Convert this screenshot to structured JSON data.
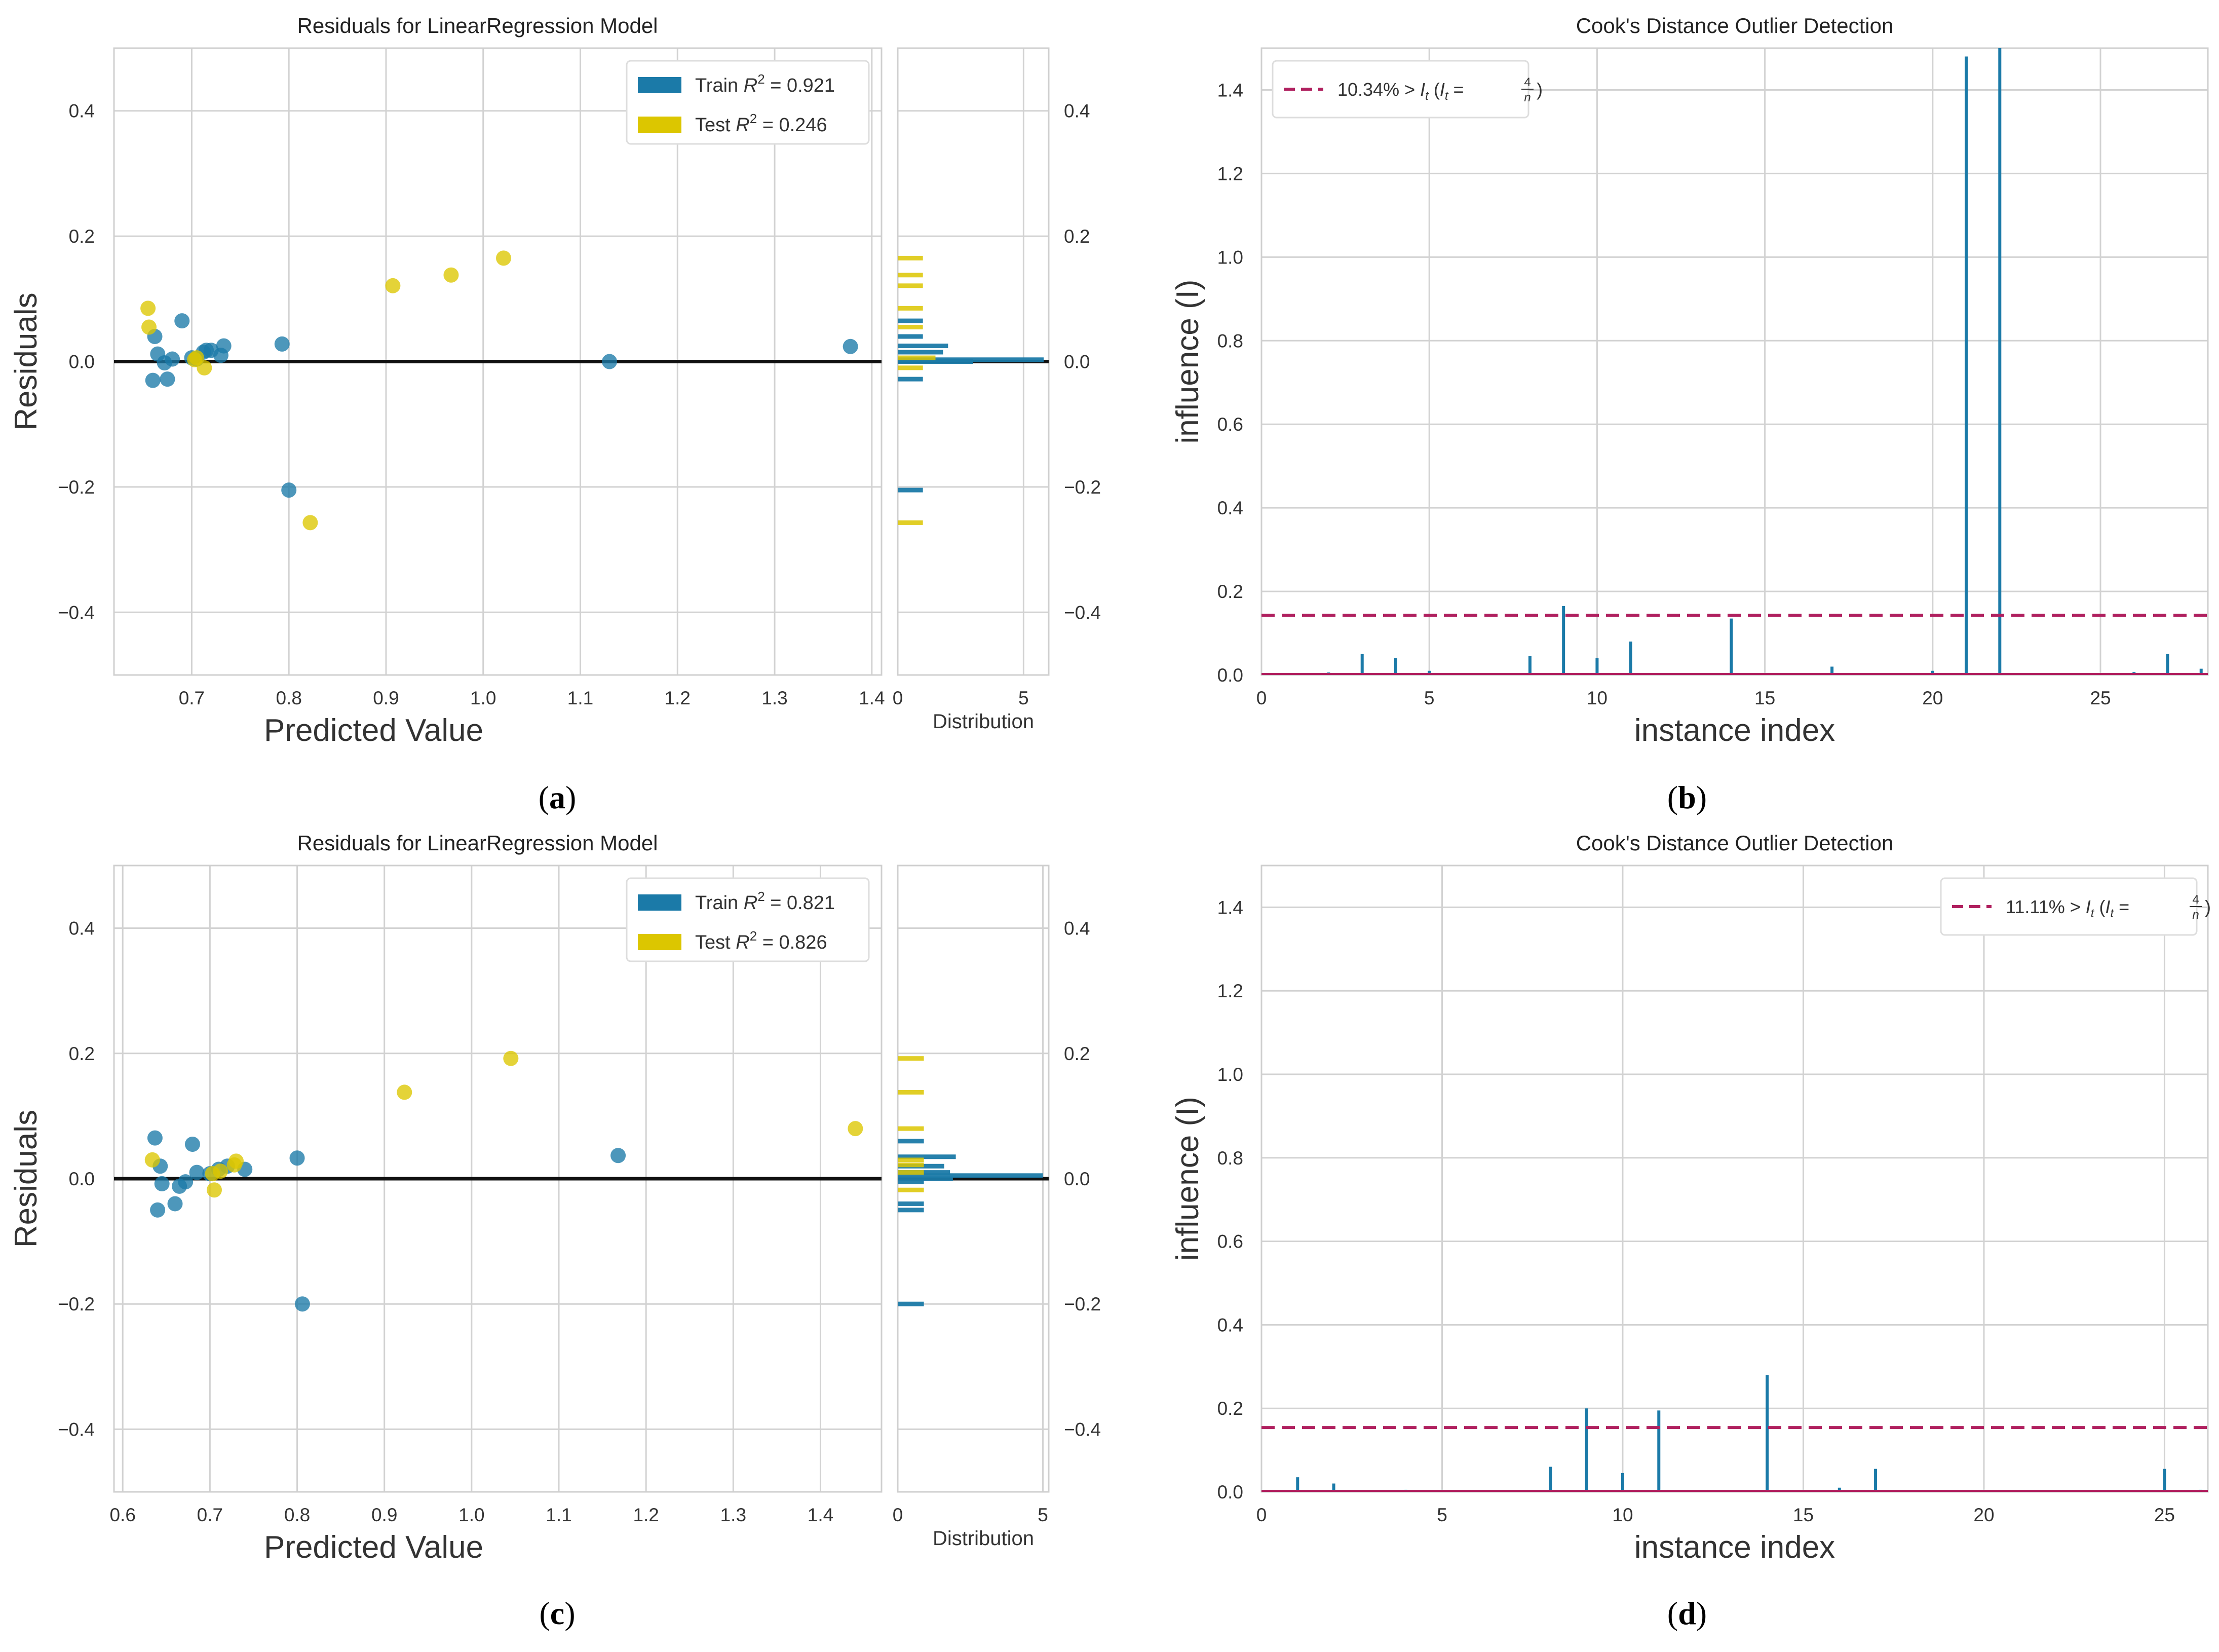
{
  "colors": {
    "train": "#1b7aa8",
    "test": "#dcc600",
    "grid": "#d2d2d2",
    "threshold": "#b0205f",
    "stem": "#1b7aa8",
    "zero_line": "#111111"
  },
  "panels": {
    "a": {
      "caption": "(a)",
      "bold": "a"
    },
    "b": {
      "caption": "(b)",
      "bold": "b"
    },
    "c": {
      "caption": "(c)",
      "bold": "c"
    },
    "d": {
      "caption": "(d)",
      "bold": "d"
    }
  },
  "chart_data": [
    {
      "id": "a",
      "type": "scatter",
      "title": "Residuals for LinearRegression Model",
      "xlabel": "Predicted Value",
      "ylabel": "Residuals",
      "xlim": [
        0.62,
        1.41
      ],
      "ylim": [
        -0.5,
        0.5
      ],
      "xticks": [
        0.7,
        0.8,
        0.9,
        1.0,
        1.1,
        1.2,
        1.3,
        1.4
      ],
      "xtick_labels": [
        "0.7",
        "0.8",
        "0.9",
        "1.0",
        "1.1",
        "1.2",
        "1.3",
        "1.4"
      ],
      "yticks": [
        -0.4,
        -0.2,
        0.0,
        0.2,
        0.4
      ],
      "ytick_labels": [
        "−0.4",
        "−0.2",
        "0.0",
        "0.2",
        "0.4"
      ],
      "legend": {
        "position": "top-right",
        "entries": [
          {
            "series": "train",
            "prefix": "Train ",
            "r2_value": "0.921"
          },
          {
            "series": "test",
            "prefix": "Test ",
            "r2_value": "0.246"
          }
        ]
      },
      "series": [
        {
          "name": "train",
          "x": [
            0.662,
            0.665,
            0.66,
            0.672,
            0.675,
            0.68,
            0.69,
            0.7,
            0.705,
            0.712,
            0.715,
            0.72,
            0.73,
            0.733,
            0.793,
            0.8,
            1.13,
            1.378
          ],
          "y": [
            0.04,
            0.012,
            -0.03,
            -0.002,
            -0.028,
            0.004,
            0.065,
            0.006,
            0.004,
            0.015,
            0.018,
            0.018,
            0.01,
            0.025,
            0.028,
            -0.205,
            0.0,
            0.024
          ]
        },
        {
          "name": "test",
          "x": [
            0.655,
            0.656,
            0.703,
            0.705,
            0.713,
            0.822,
            0.907,
            0.967,
            1.021
          ],
          "y": [
            0.085,
            0.055,
            0.003,
            0.006,
            -0.01,
            -0.257,
            0.121,
            0.138,
            0.165
          ]
        }
      ],
      "distribution": {
        "xlabel": "Distribution",
        "xlim": [
          0,
          6
        ],
        "xticks": [
          0,
          5
        ],
        "xtick_labels": [
          "0",
          "5"
        ],
        "bins": [
          {
            "series": "train",
            "y": 0.003,
            "count": 5.8
          },
          {
            "series": "train",
            "y": 0.0,
            "count": 3.0
          },
          {
            "series": "train",
            "y": 0.025,
            "count": 2.0
          },
          {
            "series": "train",
            "y": 0.015,
            "count": 1.8
          },
          {
            "series": "train",
            "y": 0.04,
            "count": 1.0
          },
          {
            "series": "train",
            "y": 0.065,
            "count": 1.0
          },
          {
            "series": "train",
            "y": -0.028,
            "count": 1.0
          },
          {
            "series": "train",
            "y": -0.205,
            "count": 1.0
          },
          {
            "series": "test",
            "y": 0.165,
            "count": 1.0
          },
          {
            "series": "test",
            "y": 0.138,
            "count": 1.0
          },
          {
            "series": "test",
            "y": 0.121,
            "count": 1.0
          },
          {
            "series": "test",
            "y": 0.085,
            "count": 1.0
          },
          {
            "series": "test",
            "y": 0.055,
            "count": 1.0
          },
          {
            "series": "test",
            "y": 0.006,
            "count": 1.5
          },
          {
            "series": "test",
            "y": -0.01,
            "count": 1.0
          },
          {
            "series": "test",
            "y": -0.257,
            "count": 1.0
          }
        ]
      }
    },
    {
      "id": "b",
      "type": "stem",
      "title": "Cook's Distance Outlier Detection",
      "xlabel": "instance index",
      "ylabel": "influence (I)",
      "xlim": [
        0,
        28.2
      ],
      "ylim": [
        0,
        1.5
      ],
      "xticks": [
        0,
        5,
        10,
        15,
        20,
        25
      ],
      "xtick_labels": [
        "0",
        "5",
        "10",
        "15",
        "20",
        "25"
      ],
      "yticks": [
        0.0,
        0.2,
        0.4,
        0.6,
        0.8,
        1.0,
        1.2,
        1.4
      ],
      "ytick_labels": [
        "0.0",
        "0.2",
        "0.4",
        "0.6",
        "0.8",
        "1.0",
        "1.2",
        "1.4"
      ],
      "threshold": 0.143,
      "legend": {
        "position": "top-left",
        "percent": "10.34%",
        "gt": " > ",
        "numerator": "4",
        "denominator": "n"
      },
      "x": [
        0,
        1,
        2,
        3,
        4,
        5,
        6,
        7,
        8,
        9,
        10,
        11,
        12,
        13,
        14,
        15,
        16,
        17,
        18,
        19,
        20,
        21,
        22,
        23,
        24,
        25,
        26,
        27,
        28
      ],
      "y": [
        0.0,
        0.003,
        0.006,
        0.05,
        0.04,
        0.01,
        0.0,
        0.002,
        0.045,
        0.165,
        0.04,
        0.08,
        0.0,
        0.0,
        0.135,
        0.0,
        0.004,
        0.02,
        0.0,
        0.004,
        0.01,
        1.48,
        1.5,
        0.0,
        0.0,
        0.0,
        0.007,
        0.05,
        0.015
      ]
    },
    {
      "id": "c",
      "type": "scatter",
      "title": "Residuals for LinearRegression Model",
      "xlabel": "Predicted Value",
      "ylabel": "Residuals",
      "xlim": [
        0.59,
        1.47
      ],
      "ylim": [
        -0.5,
        0.5
      ],
      "xticks": [
        0.6,
        0.7,
        0.8,
        0.9,
        1.0,
        1.1,
        1.2,
        1.3,
        1.4
      ],
      "xtick_labels": [
        "0.6",
        "0.7",
        "0.8",
        "0.9",
        "1.0",
        "1.1",
        "1.2",
        "1.3",
        "1.4"
      ],
      "yticks": [
        -0.4,
        -0.2,
        0.0,
        0.2,
        0.4
      ],
      "ytick_labels": [
        "−0.4",
        "−0.2",
        "0.0",
        "0.2",
        "0.4"
      ],
      "legend": {
        "position": "top-right",
        "entries": [
          {
            "series": "train",
            "prefix": "Train ",
            "r2_value": "0.821"
          },
          {
            "series": "test",
            "prefix": "Test ",
            "r2_value": "0.826"
          }
        ]
      },
      "series": [
        {
          "name": "train",
          "x": [
            0.637,
            0.64,
            0.643,
            0.645,
            0.66,
            0.665,
            0.672,
            0.68,
            0.685,
            0.7,
            0.71,
            0.72,
            0.74,
            0.8,
            0.806,
            1.168
          ],
          "y": [
            0.065,
            -0.05,
            0.02,
            -0.008,
            -0.04,
            -0.012,
            -0.005,
            0.055,
            0.01,
            0.008,
            0.015,
            0.02,
            0.015,
            0.033,
            -0.2,
            0.037
          ]
        },
        {
          "name": "test",
          "x": [
            0.634,
            0.703,
            0.705,
            0.712,
            0.728,
            0.73,
            0.923,
            1.045,
            1.44
          ],
          "y": [
            0.03,
            0.008,
            -0.018,
            0.012,
            0.022,
            0.028,
            0.138,
            0.192,
            0.08
          ]
        }
      ],
      "distribution": {
        "xlabel": "Distribution",
        "xlim": [
          0,
          5.2
        ],
        "xticks": [
          0,
          5
        ],
        "xtick_labels": [
          "0",
          "5"
        ],
        "bins": [
          {
            "series": "train",
            "y": 0.005,
            "count": 5.0
          },
          {
            "series": "train",
            "y": 0.01,
            "count": 1.8
          },
          {
            "series": "train",
            "y": 0.0,
            "count": 1.9
          },
          {
            "series": "train",
            "y": 0.02,
            "count": 1.6
          },
          {
            "series": "train",
            "y": 0.035,
            "count": 2.0
          },
          {
            "series": "train",
            "y": 0.06,
            "count": 0.9
          },
          {
            "series": "train",
            "y": -0.005,
            "count": 0.9
          },
          {
            "series": "train",
            "y": -0.04,
            "count": 0.9
          },
          {
            "series": "train",
            "y": -0.05,
            "count": 0.9
          },
          {
            "series": "train",
            "y": -0.2,
            "count": 0.9
          },
          {
            "series": "test",
            "y": 0.192,
            "count": 0.9
          },
          {
            "series": "test",
            "y": 0.138,
            "count": 0.9
          },
          {
            "series": "test",
            "y": 0.08,
            "count": 0.9
          },
          {
            "series": "test",
            "y": 0.03,
            "count": 0.9
          },
          {
            "series": "test",
            "y": 0.022,
            "count": 0.9
          },
          {
            "series": "test",
            "y": 0.01,
            "count": 0.9
          },
          {
            "series": "test",
            "y": -0.018,
            "count": 0.9
          }
        ]
      }
    },
    {
      "id": "d",
      "type": "stem",
      "title": "Cook's Distance Outlier Detection",
      "xlabel": "instance index",
      "ylabel": "influence (I)",
      "xlim": [
        0,
        26.2
      ],
      "ylim": [
        0,
        1.5
      ],
      "xticks": [
        0,
        5,
        10,
        15,
        20,
        25
      ],
      "xtick_labels": [
        "0",
        "5",
        "10",
        "15",
        "20",
        "25"
      ],
      "yticks": [
        0.0,
        0.2,
        0.4,
        0.6,
        0.8,
        1.0,
        1.2,
        1.4
      ],
      "ytick_labels": [
        "0.0",
        "0.2",
        "0.4",
        "0.6",
        "0.8",
        "1.0",
        "1.2",
        "1.4"
      ],
      "threshold": 0.154,
      "legend": {
        "position": "top-right",
        "percent": "11.11%",
        "gt": " > ",
        "numerator": "4",
        "denominator": "n"
      },
      "x": [
        0,
        1,
        2,
        3,
        4,
        5,
        6,
        7,
        8,
        9,
        10,
        11,
        12,
        13,
        14,
        15,
        16,
        17,
        18,
        19,
        20,
        21,
        22,
        23,
        24,
        25,
        26
      ],
      "y": [
        0.0,
        0.035,
        0.02,
        0.004,
        0.005,
        0.0,
        0.0,
        0.0,
        0.06,
        0.2,
        0.045,
        0.195,
        0.0,
        0.0,
        0.28,
        0.0,
        0.01,
        0.055,
        0.0,
        0.004,
        0.003,
        0.003,
        0.0,
        0.003,
        0.0,
        0.055,
        0.005
      ]
    }
  ]
}
